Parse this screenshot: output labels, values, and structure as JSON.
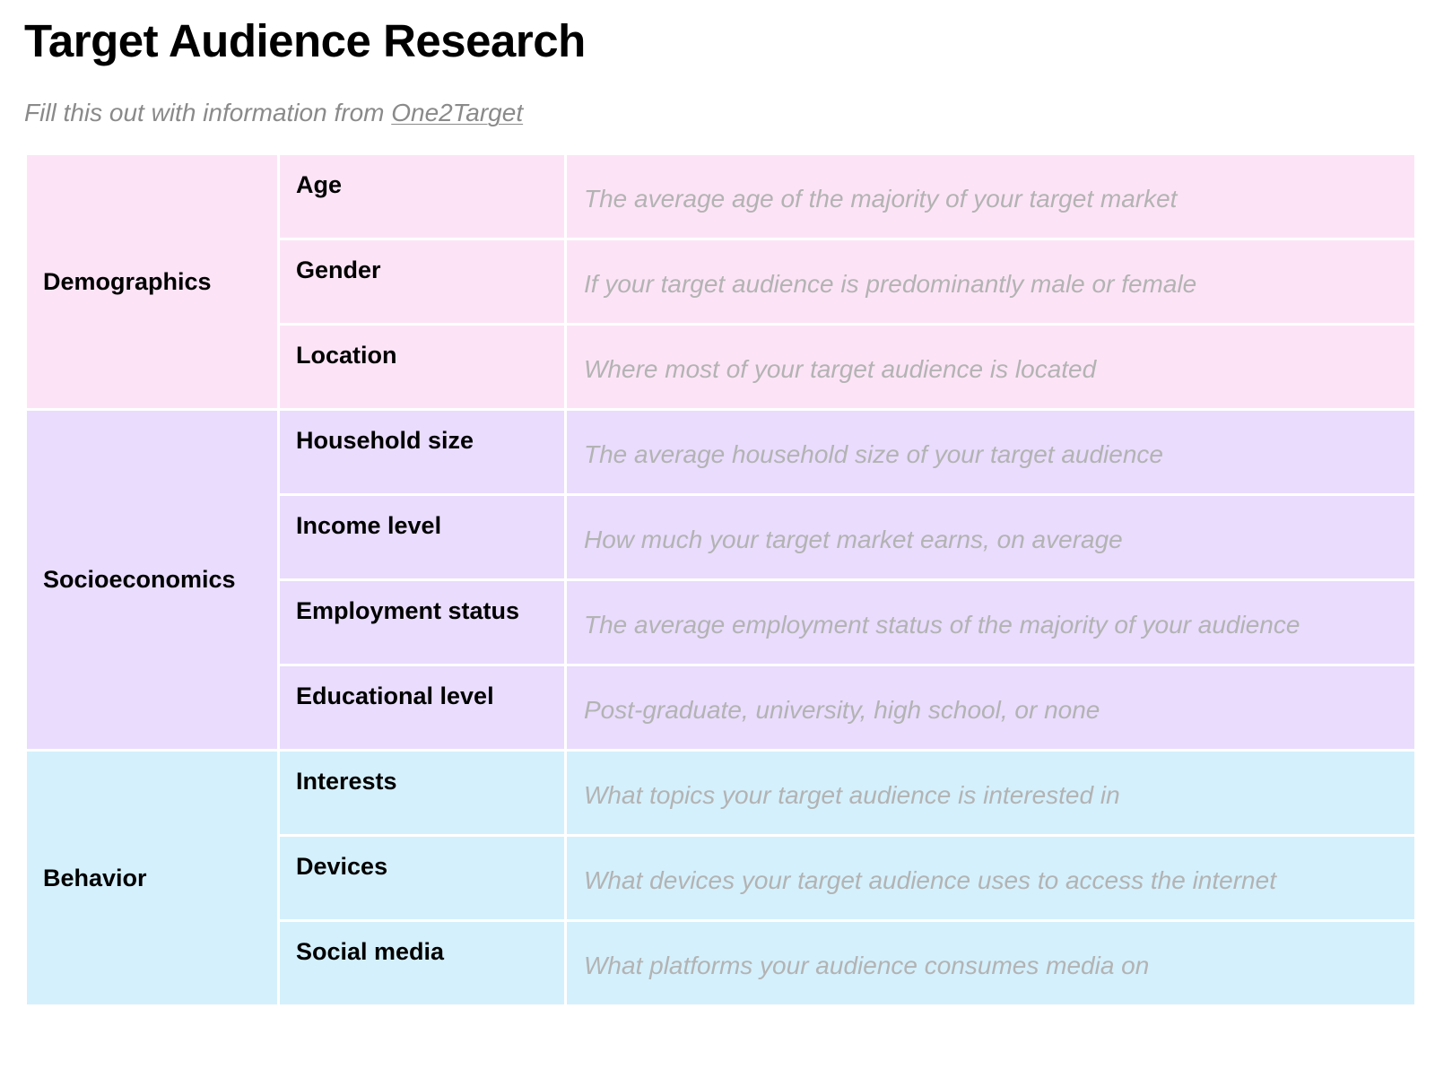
{
  "document": {
    "title": "Target Audience Research",
    "subtitle_prefix": "Fill this out with information from ",
    "subtitle_link": "One2Target"
  },
  "groups": [
    {
      "label": "Demographics",
      "color": "#fce4f6",
      "rows": [
        {
          "field": "Age",
          "hint": "The average age of the majority of your target market"
        },
        {
          "field": "Gender",
          "hint": "If your target audience is predominantly male or female"
        },
        {
          "field": "Location",
          "hint": "Where most of your target audience is located"
        }
      ]
    },
    {
      "label": "Socioeconomics",
      "color": "#e9dcfd",
      "rows": [
        {
          "field": "Household size",
          "hint": "The average household size of your target audience"
        },
        {
          "field": "Income level",
          "hint": "How much your target market earns, on average"
        },
        {
          "field": "Employment status",
          "hint": "The average employment status of the majority of your audience"
        },
        {
          "field": "Educational level",
          "hint": "Post-graduate, university, high school, or none"
        }
      ]
    },
    {
      "label": "Behavior",
      "color": "#d4f0fc",
      "rows": [
        {
          "field": "Interests",
          "hint": "What topics your target audience is interested in"
        },
        {
          "field": "Devices",
          "hint": "What devices your target audience uses to access the internet"
        },
        {
          "field": "Social media",
          "hint": "What platforms your audience consumes media on"
        }
      ]
    }
  ]
}
